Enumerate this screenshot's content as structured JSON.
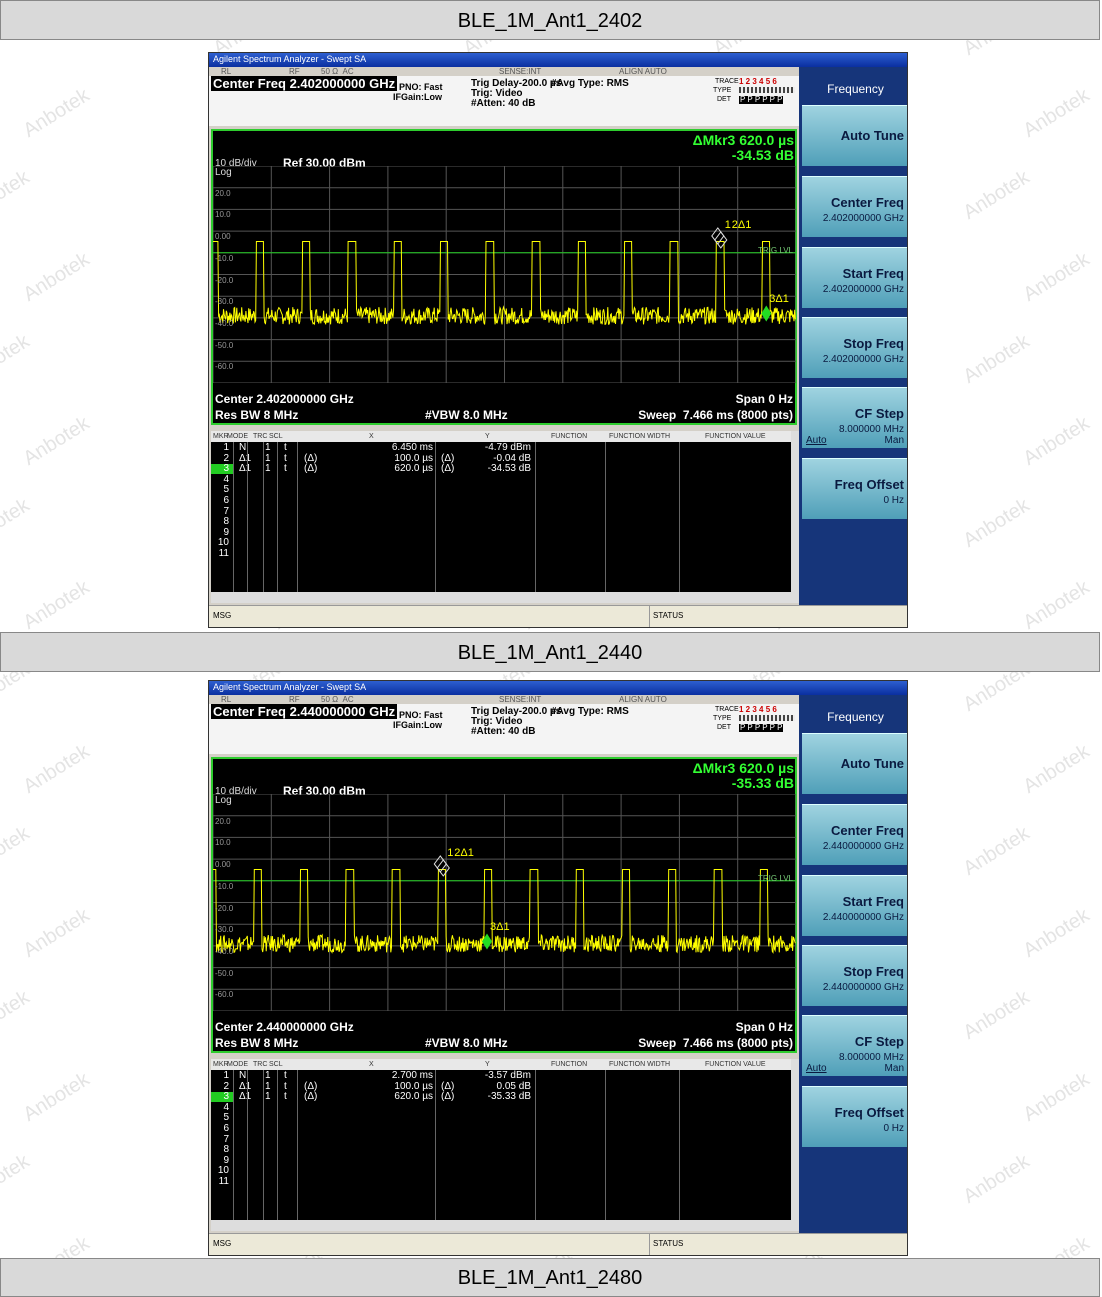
{
  "watermark": "Anbotek",
  "sections": [
    {
      "title": "BLE_1M_Ant1_2402",
      "analyzer": {
        "window_title": "Agilent Spectrum Analyzer - Swept SA",
        "status_bar": [
          "RL",
          "RF",
          "50 Ω  AC",
          "SENSE:INT",
          "ALIGN AUTO"
        ],
        "center_freq_title": "Center Freq 2.402000000 GHz",
        "pno": "PNO: Fast",
        "ifgain": "IFGain:Low",
        "trig_delay": "Trig Delay-200.0 µs",
        "trig": "Trig: Video",
        "atten": "#Atten: 40 dB",
        "avg_type": "#Avg Type: RMS",
        "trace_labels": [
          "TRACE",
          "TYPE",
          "DET"
        ],
        "trace_numbers": "1 2 3 4 5 6",
        "det": "P P P P P P",
        "marker_readout": "ΔMkr3 620.0 µs",
        "marker_delta": "-34.53 dB",
        "scale": "10 dB/div",
        "ref": "Ref 30.00 dBm",
        "log": "Log",
        "yticks": [
          "20.0",
          "10.0",
          "0.00",
          "-10.0",
          "-20.0",
          "-30.0",
          "-40.0",
          "-50.0",
          "-60.0"
        ],
        "trig_lvl": "TRIG LVL",
        "marker_labels": [
          "1",
          "2Δ1",
          "3Δ1"
        ],
        "center": "Center 2.402000000 GHz",
        "span": "Span 0 Hz",
        "res_bw": "Res BW 8 MHz",
        "vbw": "#VBW 8.0 MHz",
        "sweep": "Sweep  7.466 ms (8000 pts)",
        "table_header": [
          "MKR",
          "MODE",
          "TRC",
          "SCL",
          "X",
          "Y",
          "FUNCTION",
          "FUNCTION WIDTH",
          "FUNCTION VALUE"
        ],
        "table_rows": [
          [
            "1",
            "N",
            "1",
            "t",
            "",
            "6.450 ms",
            "",
            "-4.79 dBm"
          ],
          [
            "2",
            "Δ1",
            "1",
            "t",
            "(Δ)",
            "100.0 µs",
            "(Δ)",
            "-0.04 dB"
          ],
          [
            "3",
            "Δ1",
            "1",
            "t",
            "(Δ)",
            "620.0 µs",
            "(Δ)",
            "-34.53 dB"
          ],
          [
            "4"
          ],
          [
            "5"
          ],
          [
            "6"
          ],
          [
            "7"
          ],
          [
            "8"
          ],
          [
            "9"
          ],
          [
            "10"
          ],
          [
            "11"
          ]
        ],
        "msg": "MSG",
        "status": "STATUS",
        "softkeys": {
          "title": "Frequency",
          "keys": [
            {
              "label": "Auto Tune"
            },
            {
              "label": "Center Freq",
              "value": "2.402000000 GHz"
            },
            {
              "label": "Start Freq",
              "value": "2.402000000 GHz"
            },
            {
              "label": "Stop Freq",
              "value": "2.402000000 GHz"
            },
            {
              "label": "CF Step",
              "value": "8.000000 MHz",
              "options": [
                "Auto",
                "Man"
              ]
            },
            {
              "label": "Freq Offset",
              "value": "0 Hz"
            }
          ]
        }
      }
    },
    {
      "title": "BLE_1M_Ant1_2440",
      "analyzer": {
        "window_title": "Agilent Spectrum Analyzer - Swept SA",
        "status_bar": [
          "RL",
          "RF",
          "50 Ω  AC",
          "SENSE:INT",
          "ALIGN AUTO"
        ],
        "center_freq_title": "Center Freq 2.440000000 GHz",
        "pno": "PNO: Fast",
        "ifgain": "IFGain:Low",
        "trig_delay": "Trig Delay-200.0 µs",
        "trig": "Trig: Video",
        "atten": "#Atten: 40 dB",
        "avg_type": "#Avg Type: RMS",
        "trace_labels": [
          "TRACE",
          "TYPE",
          "DET"
        ],
        "trace_numbers": "1 2 3 4 5 6",
        "det": "P P P P P P",
        "marker_readout": "ΔMkr3 620.0 µs",
        "marker_delta": "-35.33 dB",
        "scale": "10 dB/div",
        "ref": "Ref 30.00 dBm",
        "log": "Log",
        "yticks": [
          "20.0",
          "10.0",
          "0.00",
          "-10.0",
          "-20.0",
          "-30.0",
          "-40.0",
          "-50.0",
          "-60.0"
        ],
        "trig_lvl": "TRIG LVL",
        "marker_labels": [
          "1",
          "2Δ1",
          "3Δ1"
        ],
        "center": "Center 2.440000000 GHz",
        "span": "Span 0 Hz",
        "res_bw": "Res BW 8 MHz",
        "vbw": "#VBW 8.0 MHz",
        "sweep": "Sweep  7.466 ms (8000 pts)",
        "table_header": [
          "MKR",
          "MODE",
          "TRC",
          "SCL",
          "X",
          "Y",
          "FUNCTION",
          "FUNCTION WIDTH",
          "FUNCTION VALUE"
        ],
        "table_rows": [
          [
            "1",
            "N",
            "1",
            "t",
            "",
            "2.700 ms",
            "",
            "-3.57 dBm"
          ],
          [
            "2",
            "Δ1",
            "1",
            "t",
            "(Δ)",
            "100.0 µs",
            "(Δ)",
            "0.05 dB"
          ],
          [
            "3",
            "Δ1",
            "1",
            "t",
            "(Δ)",
            "620.0 µs",
            "(Δ)",
            "-35.33 dB"
          ],
          [
            "4"
          ],
          [
            "5"
          ],
          [
            "6"
          ],
          [
            "7"
          ],
          [
            "8"
          ],
          [
            "9"
          ],
          [
            "10"
          ],
          [
            "11"
          ]
        ],
        "msg": "MSG",
        "status": "STATUS",
        "softkeys": {
          "title": "Frequency",
          "keys": [
            {
              "label": "Auto Tune"
            },
            {
              "label": "Center Freq",
              "value": "2.440000000 GHz"
            },
            {
              "label": "Start Freq",
              "value": "2.440000000 GHz"
            },
            {
              "label": "Stop Freq",
              "value": "2.440000000 GHz"
            },
            {
              "label": "CF Step",
              "value": "8.000000 MHz",
              "options": [
                "Auto",
                "Man"
              ]
            },
            {
              "label": "Freq Offset",
              "value": "0 Hz"
            }
          ]
        }
      }
    },
    {
      "title": "BLE_1M_Ant1_2480"
    }
  ]
}
